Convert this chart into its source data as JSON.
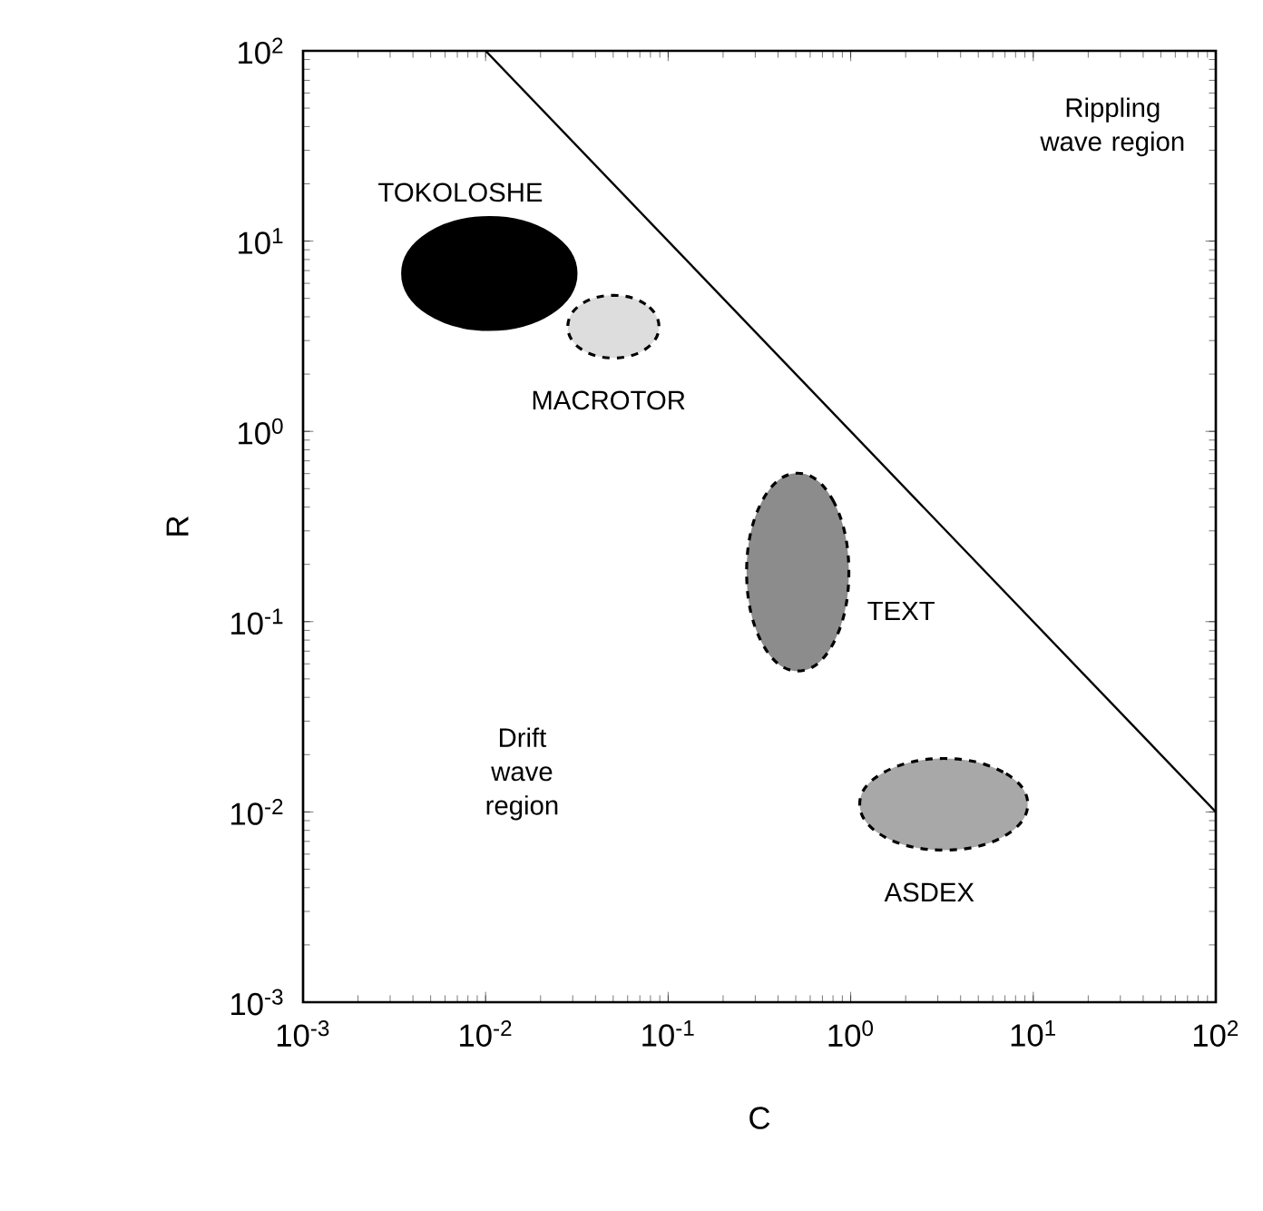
{
  "chart_data": {
    "type": "line",
    "xlabel": "C",
    "ylabel": "R",
    "log": "xy",
    "xlim": [
      0.001,
      100
    ],
    "ylim": [
      0.001,
      100
    ],
    "xticks": [
      {
        "value": 0.001,
        "label": "10$^{-3}$"
      },
      {
        "value": 0.01,
        "label": "10$^{-2}$"
      },
      {
        "value": 0.1,
        "label": "10$^{-1}$"
      },
      {
        "value": 1,
        "label": "10$^{0}$"
      },
      {
        "value": 10,
        "label": "10$^{1}$"
      },
      {
        "value": 100,
        "label": "10$^{2}$"
      }
    ],
    "yticks": [
      {
        "value": 0.001,
        "label": "10$^{-3}$"
      },
      {
        "value": 0.01,
        "label": "10$^{-2}$"
      },
      {
        "value": 0.1,
        "label": "10$^{-1}$"
      },
      {
        "value": 1,
        "label": "10$^{0}$"
      },
      {
        "value": 10,
        "label": "10$^{1}$"
      },
      {
        "value": 100,
        "label": "10$^{2}$"
      }
    ],
    "grid": false,
    "legend": false,
    "marker": "none",
    "series": [
      {
        "color": "#000000",
        "line_style": "solid",
        "x": [
          0.01,
          100
        ],
        "values": [
          100,
          0.01
        ]
      },
      {
        "type": "area",
        "name": "TOKOLOSHE",
        "color": "#000000",
        "line_style": "solid",
        "x": [
          0.0313,
          0.0227,
          0.0105,
          0.00483,
          0.00351,
          0.00483,
          0.0105,
          0.0227
        ],
        "values": [
          6.76,
          10.9,
          13.3,
          10.9,
          6.76,
          4.18,
          3.43,
          4.18
        ]
      },
      {
        "type": "area",
        "name": "MACROTOR",
        "color": "#dddddd",
        "line_style": "dashed",
        "x": [
          0.0891,
          0.0753,
          0.0501,
          0.0333,
          0.0282,
          0.0333,
          0.0501,
          0.0753
        ],
        "values": [
          3.55,
          4.65,
          5.19,
          4.65,
          3.55,
          2.71,
          2.43,
          2.71
        ]
      },
      {
        "type": "area",
        "name": "TEXT",
        "color": "#8c8c8c",
        "line_style": "dashed",
        "x": [
          0.977,
          0.809,
          0.513,
          0.325,
          0.269,
          0.325,
          0.513,
          0.809
        ],
        "values": [
          0.182,
          0.425,
          0.603,
          0.425,
          0.182,
          0.078,
          0.055,
          0.078
        ]
      },
      {
        "type": "area",
        "name": "ASDEX",
        "color": "#a8a8a8",
        "line_style": "dashed",
        "x": [
          9.33,
          6.84,
          3.24,
          1.53,
          1.12,
          1.53,
          3.24,
          6.84
        ],
        "values": [
          0.011,
          0.0162,
          0.0191,
          0.0162,
          0.011,
          0.0074,
          0.0063,
          0.0074
        ]
      }
    ],
    "annotations": [
      "Drift wave region",
      "Rippling wave region"
    ]
  }
}
